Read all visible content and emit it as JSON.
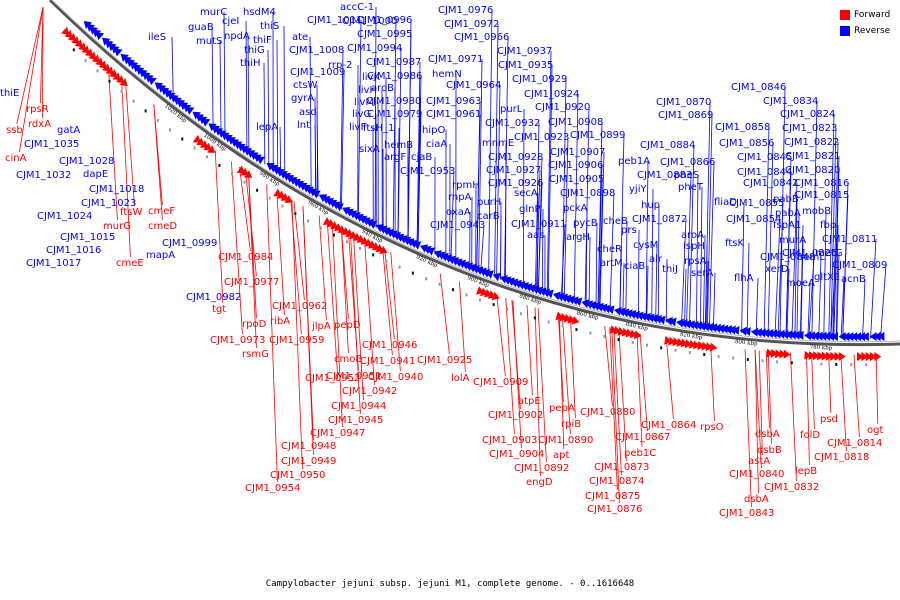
{
  "caption": "Campylobacter jejuni subsp. jejuni M1, complete genome. - 0..1616648",
  "colors": {
    "forward": "#ff0000",
    "reverse": "#0000ff",
    "backbone": "#555555"
  },
  "legend": [
    {
      "label": "Forward",
      "color": "#ff0000"
    },
    {
      "label": "Reverse",
      "color": "#0000ff"
    }
  ],
  "scale_ticks": [
    "1020 kbp",
    "1000 kbp",
    "980 kbp",
    "960 kbp",
    "940 kbp",
    "920 kbp",
    "900 kbp",
    "880 kbp",
    "860 kbp",
    "840 kbp",
    "820 kbp",
    "800 kbp",
    "780 kbp"
  ],
  "reverse_labels": [
    "ileS",
    "guaB",
    "murC",
    "mutS",
    "cjeI",
    "npdA",
    "hsdM4",
    "thiS",
    "thiF",
    "thiG",
    "thiH",
    "ate",
    "CJM1_1011",
    "CJM1_1008",
    "CJM1_1009",
    "rrp-2",
    "ctsW",
    "gyrA",
    "asd",
    "lnt",
    "livK",
    "livH",
    "livM",
    "livG",
    "livF",
    "accC-1",
    "CJM1_1000",
    "CJM1_0996",
    "CJM1_0995",
    "CJM1_0994",
    "CJM1_0987",
    "CJM1_0986",
    "aroB",
    "CJM1_0980",
    "CJM1_0979",
    "ftsH_1",
    "sixA",
    "hemB",
    "argF",
    "CJM1_0976",
    "CJM1_0972",
    "CJM1_0966",
    "CJM1_0971",
    "hemN",
    "CJM1_0964",
    "CJM1_0963",
    "CJM1_0961",
    "hipO",
    "ciaA",
    "cjaB",
    "CJM1_0953",
    "rpmH",
    "rnpA",
    "oxaA",
    "CJM1_0943",
    "CJM1_0937",
    "CJM1_0935",
    "CJM1_0929",
    "purL",
    "CJM1_0924",
    "CJM1_0920",
    "CJM1_0932",
    "mnmE",
    "CJM1_0923",
    "CJM1_0928",
    "CJM1_0927",
    "CJM1_0926",
    "purH",
    "carB",
    "secA",
    "glnP",
    "CJM1_0911",
    "aas",
    "CJM1_0908",
    "CJM1_0899",
    "CJM1_0907",
    "CJM1_0906",
    "CJM1_0905",
    "CJM1_0898",
    "pckA",
    "pycB",
    "argH",
    "CJM1_0884",
    "peb1A",
    "CJM1_0883",
    "yjiY",
    "hup",
    "cheB",
    "prs",
    "cheR",
    "artM",
    "ciaB",
    "cysM",
    "CJM1_0872",
    "alr",
    "thiJ",
    "CJM1_0870",
    "CJM1_0869",
    "CJM1_0866",
    "pheS",
    "pheT",
    "CJM1_0858",
    "CJM1_0856",
    "CJM1_0855",
    "CJM1_0854",
    "aroA",
    "ispH",
    "rpsA",
    "serA",
    "fliaD",
    "ftsK",
    "flhA",
    "CJM1_0848",
    "CJM1_0846",
    "CJM1_0845",
    "CJM1_0844",
    "CJM1_0842",
    "CJM1_0834",
    "CJM1_0824",
    "CJM1_0823",
    "CJM1_0822",
    "CJM1_0821",
    "CJM1_0820",
    "CJM1_0816",
    "CJM1_0815",
    "pabB",
    "pabA",
    "fspA1",
    "murA",
    "CJM1_0826",
    "xerD",
    "moeA",
    "hemL",
    "gltX1",
    "mobB",
    "fbp",
    "CJM1_0811",
    "metG",
    "CJM1_0809",
    "acnB",
    "thiE",
    "gatA",
    "CJM1_1035",
    "CJM1_1032",
    "CJM1_1028",
    "dapE",
    "CJM1_1018",
    "CJM1_1023",
    "CJM1_1024",
    "CJM1_1015",
    "CJM1_1016",
    "CJM1_1017",
    "CJM1_0999",
    "mapA",
    "CJM1_0982",
    "lepA"
  ],
  "forward_labels": [
    "rpsR",
    "rdxA",
    "ssb",
    "cinA",
    "ftsW",
    "murG",
    "cmeF",
    "cmeD",
    "cmeE",
    "CJM1_0984",
    "CJM1_0977",
    "tgt",
    "rpoD",
    "CJM1_0973",
    "CJM1_0962",
    "ribA",
    "CJM1_0959",
    "rsmG",
    "jlpA",
    "pepD",
    "cmoB",
    "CJM1_0946",
    "CJM1_0952",
    "CJM1_0941",
    "CJM1_0940",
    "CJM1_0951",
    "CJM1_0942",
    "CJM1_0944",
    "CJM1_0945",
    "CJM1_0947",
    "CJM1_0948",
    "CJM1_0949",
    "CJM1_0950",
    "CJM1_0954",
    "CJM1_0925",
    "lolA",
    "CJM1_0909",
    "atpE",
    "CJM1_0902",
    "CJM1_0903",
    "CJM1_0904",
    "pepA",
    "rpiB",
    "CJM1_0890",
    "apt",
    "CJM1_0892",
    "engD",
    "CJM1_0880",
    "CJM1_0867",
    "peb1C",
    "CJM1_0873",
    "CJM1_0874",
    "CJM1_0875",
    "CJM1_0876",
    "CJM1_0864",
    "rpsO",
    "dsbA",
    "dsbB",
    "astA",
    "CJM1_0840",
    "dsbA",
    "CJM1_0843",
    "CJM1_0832",
    "lepB",
    "folD",
    "psd",
    "CJM1_0818",
    "CJM1_0814",
    "ogt"
  ]
}
